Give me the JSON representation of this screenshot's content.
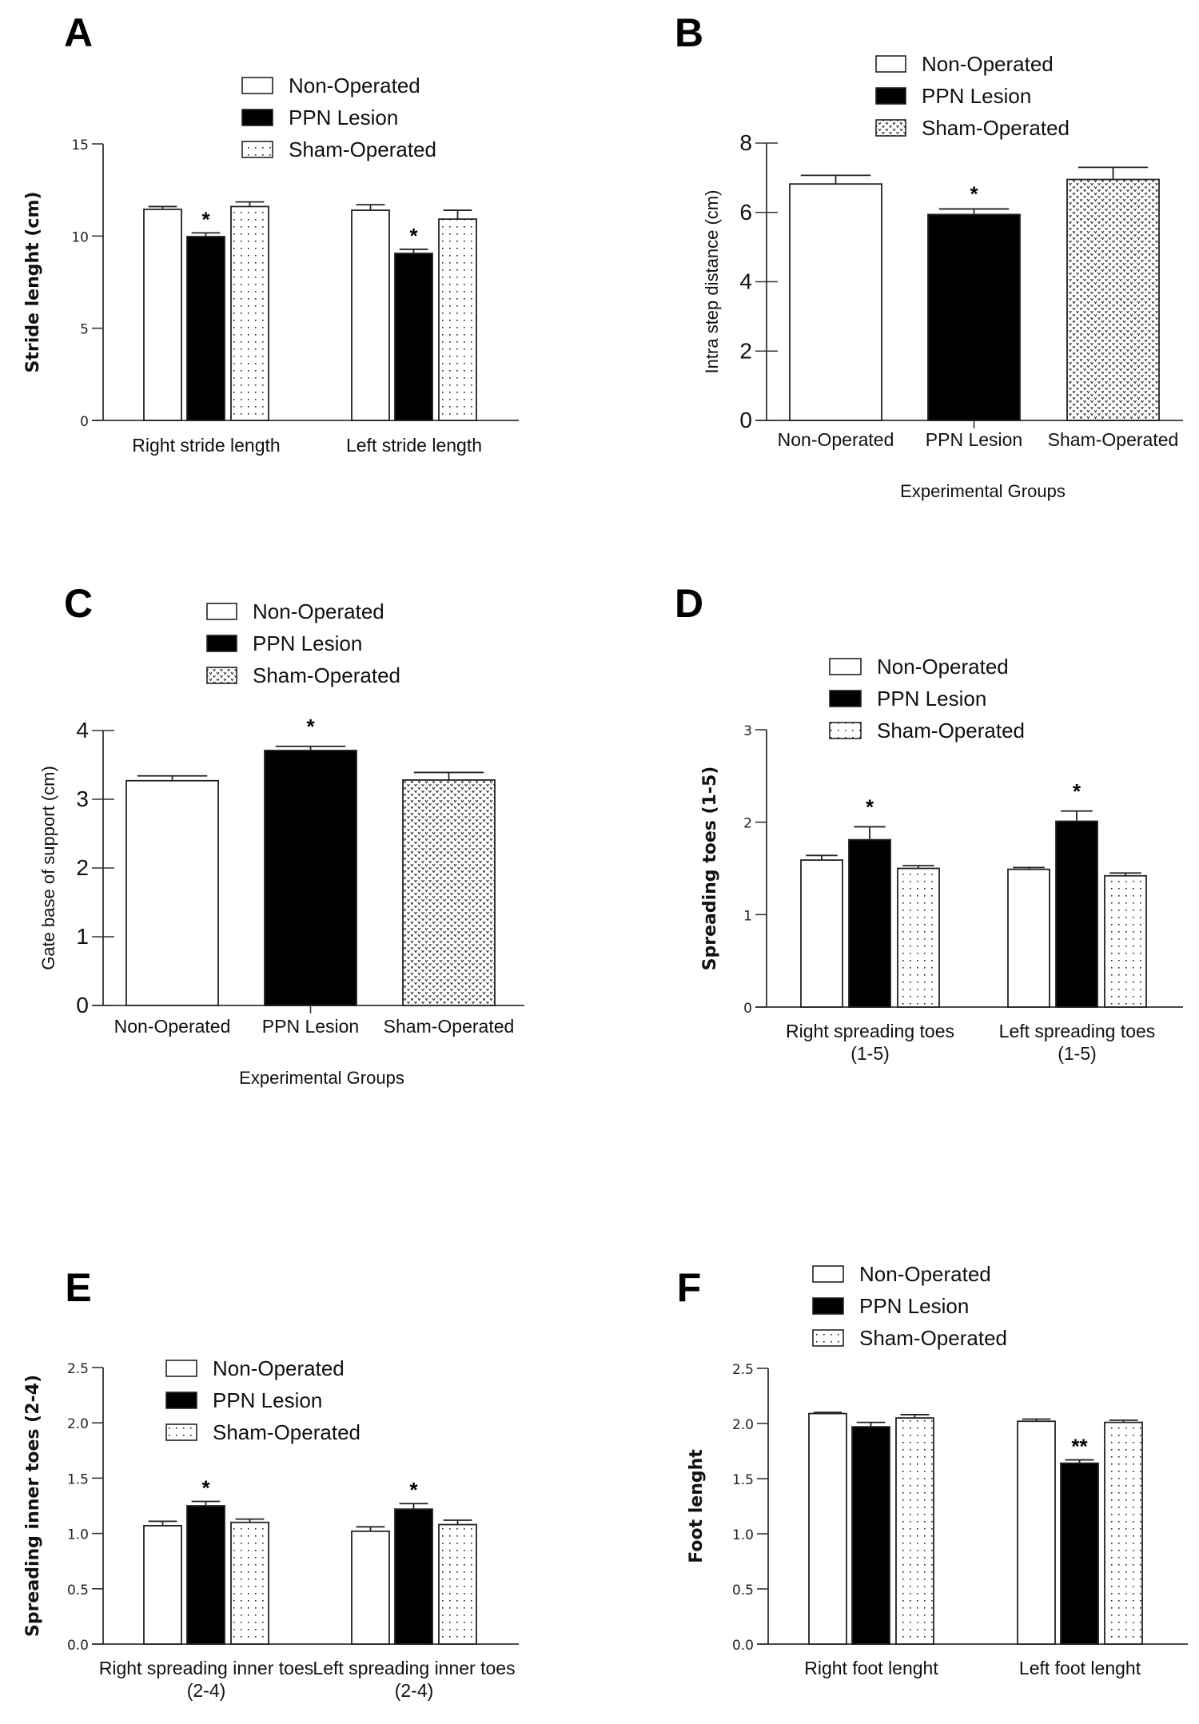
{
  "figure": {
    "legend": [
      "Non-Operated",
      "PPN Lesion",
      "Sham-Operated"
    ],
    "colors": {
      "non_operated": "#ffffff",
      "ppn_lesion": "#000000",
      "sham_operated": "pattern",
      "outline": "#222222"
    }
  },
  "chart_data": [
    {
      "panel": "A",
      "type": "bar",
      "title": "",
      "ylabel": "Stride lenght (cm)",
      "xlabel": "",
      "categories": [
        "Right stride length",
        "Left stride length"
      ],
      "ylim": [
        0,
        15
      ],
      "yticks": [
        0,
        5,
        10,
        15
      ],
      "ytick_labels": [
        "0",
        "5",
        "10",
        "15"
      ],
      "series": [
        {
          "name": "Non-Operated",
          "values": [
            11.45,
            11.4
          ],
          "errors": [
            0.15,
            0.3
          ]
        },
        {
          "name": "PPN Lesion",
          "values": [
            9.97,
            9.06
          ],
          "errors": [
            0.2,
            0.22
          ]
        },
        {
          "name": "Sham-Operated",
          "values": [
            11.6,
            10.92
          ],
          "errors": [
            0.25,
            0.48
          ]
        }
      ],
      "annotations": [
        {
          "category": 0,
          "series": 1,
          "text": "*"
        },
        {
          "category": 1,
          "series": 1,
          "text": "*"
        }
      ],
      "legend_position": "top-center",
      "grid": false
    },
    {
      "panel": "B",
      "type": "bar",
      "title": "",
      "ylabel": "Intra step distance (cm)",
      "xlabel": "Experimental Groups",
      "categories": [
        "Non-Operated",
        "PPN  Lesion",
        "Sham-Operated"
      ],
      "ylim": [
        0,
        8
      ],
      "yticks": [
        0,
        2,
        4,
        6,
        8
      ],
      "ytick_labels": [
        "0",
        "2",
        "4",
        "6",
        "8"
      ],
      "series": [
        {
          "name": "Non-Operated",
          "values": [
            6.82
          ],
          "errors": [
            0.25
          ]
        },
        {
          "name": "PPN Lesion",
          "values": [
            5.94
          ],
          "errors": [
            0.16
          ]
        },
        {
          "name": "Sham-Operated",
          "values": [
            6.95
          ],
          "errors": [
            0.35
          ]
        }
      ],
      "annotations": [
        {
          "category": 1,
          "series": 1,
          "text": "*"
        }
      ],
      "legend_position": "top-center",
      "grid": false
    },
    {
      "panel": "C",
      "type": "bar",
      "title": "",
      "ylabel": "Gate base of support (cm)",
      "xlabel": "Experimental Groups",
      "categories": [
        "Non-Operated",
        "PPN  Lesion",
        "Sham-Operated"
      ],
      "ylim": [
        0,
        4
      ],
      "yticks": [
        0,
        1,
        2,
        3,
        4
      ],
      "ytick_labels": [
        "0",
        "1",
        "2",
        "3",
        "4"
      ],
      "series": [
        {
          "name": "Non-Operated",
          "values": [
            3.27
          ],
          "errors": [
            0.07
          ]
        },
        {
          "name": "PPN Lesion",
          "values": [
            3.71
          ],
          "errors": [
            0.06
          ]
        },
        {
          "name": "Sham-Operated",
          "values": [
            3.28
          ],
          "errors": [
            0.11
          ]
        }
      ],
      "annotations": [
        {
          "category": 1,
          "series": 1,
          "text": "*"
        }
      ],
      "legend_position": "top-center",
      "grid": false
    },
    {
      "panel": "D",
      "type": "bar",
      "title": "",
      "ylabel": "Spreading toes (1-5)",
      "xlabel": "",
      "categories": [
        "Right spreading toes\n(1-5)",
        "Left spreading toes\n(1-5)"
      ],
      "ylim": [
        0,
        3
      ],
      "yticks": [
        0,
        1,
        2,
        3
      ],
      "ytick_labels": [
        "0",
        "1",
        "2",
        "3"
      ],
      "series": [
        {
          "name": "Non-Operated",
          "values": [
            1.59,
            1.49
          ],
          "errors": [
            0.05,
            0.02
          ]
        },
        {
          "name": "PPN Lesion",
          "values": [
            1.81,
            2.01
          ],
          "errors": [
            0.14,
            0.11
          ]
        },
        {
          "name": "Sham-Operated",
          "values": [
            1.5,
            1.42
          ],
          "errors": [
            0.03,
            0.03
          ]
        }
      ],
      "annotations": [
        {
          "category": 0,
          "series": 1,
          "text": "*"
        },
        {
          "category": 1,
          "series": 1,
          "text": "*"
        }
      ],
      "legend_position": "top-center",
      "grid": false
    },
    {
      "panel": "E",
      "type": "bar",
      "title": "",
      "ylabel": "Spreading inner  toes (2-4)",
      "xlabel": "",
      "categories": [
        "Right spreading inner toes\n(2-4)",
        "Left spreading inner toes\n(2-4)"
      ],
      "ylim": [
        0,
        2.5
      ],
      "yticks": [
        0,
        0.5,
        1.0,
        1.5,
        2.0,
        2.5
      ],
      "ytick_labels": [
        "0.0",
        "0.5",
        "1.0",
        "1.5",
        "2.0",
        "2.5"
      ],
      "series": [
        {
          "name": "Non-Operated",
          "values": [
            1.07,
            1.02
          ],
          "errors": [
            0.04,
            0.04
          ]
        },
        {
          "name": "PPN Lesion",
          "values": [
            1.25,
            1.22
          ],
          "errors": [
            0.04,
            0.05
          ]
        },
        {
          "name": "Sham-Operated",
          "values": [
            1.1,
            1.08
          ],
          "errors": [
            0.03,
            0.04
          ]
        }
      ],
      "annotations": [
        {
          "category": 0,
          "series": 1,
          "text": "*"
        },
        {
          "category": 1,
          "series": 1,
          "text": "*"
        }
      ],
      "legend_position": "top-center",
      "grid": false
    },
    {
      "panel": "F",
      "type": "bar",
      "title": "",
      "ylabel": "Foot lenght",
      "xlabel": "",
      "categories": [
        "Right foot lenght",
        "Left foot lenght"
      ],
      "ylim": [
        0,
        2.5
      ],
      "yticks": [
        0,
        0.5,
        1.0,
        1.5,
        2.0,
        2.5
      ],
      "ytick_labels": [
        "0.0",
        "0.5",
        "1.0",
        "1.5",
        "2.0",
        "2.5"
      ],
      "series": [
        {
          "name": "Non-Operated",
          "values": [
            2.09,
            2.02
          ],
          "errors": [
            0.01,
            0.02
          ]
        },
        {
          "name": "PPN Lesion",
          "values": [
            1.97,
            1.64
          ],
          "errors": [
            0.04,
            0.03
          ]
        },
        {
          "name": "Sham-Operated",
          "values": [
            2.05,
            2.01
          ],
          "errors": [
            0.03,
            0.02
          ]
        }
      ],
      "annotations": [
        {
          "category": 1,
          "series": 1,
          "text": "**"
        }
      ],
      "legend_position": "top-center",
      "grid": false
    }
  ]
}
